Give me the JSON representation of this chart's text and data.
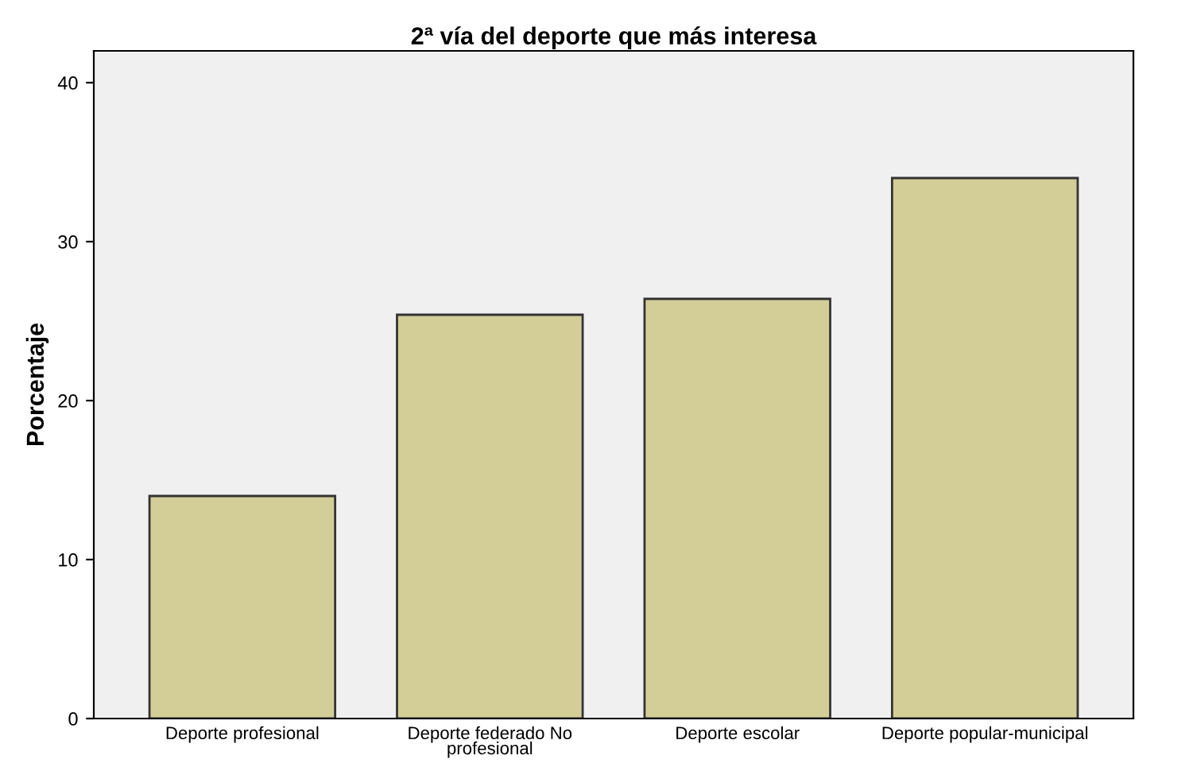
{
  "chart_data": {
    "type": "bar",
    "title": "2ª vía del deporte que más interesa",
    "ylabel": "Porcentaje",
    "categories": [
      "Deporte profesional",
      "Deporte federado No\nprofesional",
      "Deporte escolar",
      "Deporte popular-municipal"
    ],
    "values": [
      14.0,
      25.4,
      26.4,
      34.0
    ],
    "color": "#d3ce97",
    "ylim": [
      0,
      42
    ],
    "yticks": [
      0,
      10,
      20,
      30,
      40
    ],
    "grid": false,
    "legend": false
  }
}
